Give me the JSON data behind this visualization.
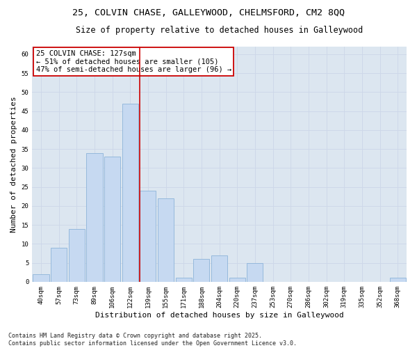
{
  "title_line1": "25, COLVIN CHASE, GALLEYWOOD, CHELMSFORD, CM2 8QQ",
  "title_line2": "Size of property relative to detached houses in Galleywood",
  "xlabel": "Distribution of detached houses by size in Galleywood",
  "ylabel": "Number of detached properties",
  "bar_labels": [
    "40sqm",
    "57sqm",
    "73sqm",
    "89sqm",
    "106sqm",
    "122sqm",
    "139sqm",
    "155sqm",
    "171sqm",
    "188sqm",
    "204sqm",
    "220sqm",
    "237sqm",
    "253sqm",
    "270sqm",
    "286sqm",
    "302sqm",
    "319sqm",
    "335sqm",
    "352sqm",
    "368sqm"
  ],
  "bar_values": [
    2,
    9,
    14,
    34,
    33,
    47,
    24,
    22,
    1,
    6,
    7,
    1,
    5,
    0,
    0,
    0,
    0,
    0,
    0,
    0,
    1
  ],
  "bar_color": "#c6d9f1",
  "bar_edge_color": "#8db3d9",
  "grid_color": "#ccd6e8",
  "background_color": "#dce6f0",
  "plot_bg_color": "#dce6f0",
  "vline_x": 5.53,
  "vline_color": "#cc0000",
  "annotation_text": "25 COLVIN CHASE: 127sqm\n← 51% of detached houses are smaller (105)\n47% of semi-detached houses are larger (96) →",
  "annotation_box_color": "#ffffff",
  "annotation_box_edge": "#cc0000",
  "ylim": [
    0,
    62
  ],
  "yticks": [
    0,
    5,
    10,
    15,
    20,
    25,
    30,
    35,
    40,
    45,
    50,
    55,
    60
  ],
  "footer_text": "Contains HM Land Registry data © Crown copyright and database right 2025.\nContains public sector information licensed under the Open Government Licence v3.0.",
  "title_fontsize": 9.5,
  "subtitle_fontsize": 8.5,
  "axis_label_fontsize": 8,
  "tick_fontsize": 6.5,
  "annotation_fontsize": 7.5,
  "footer_fontsize": 6.0
}
